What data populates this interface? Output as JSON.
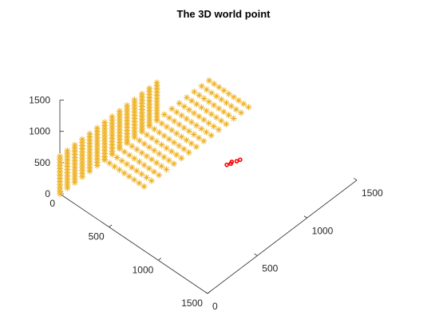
{
  "chart_data": {
    "type": "scatter",
    "title": "The 3D world point",
    "xlabel": "",
    "ylabel": "",
    "zlabel": "",
    "x_axis": {
      "ticks": [
        0,
        500,
        1000,
        1500
      ],
      "lim": [
        0,
        1500
      ]
    },
    "y_axis": {
      "ticks": [
        0,
        500,
        1000,
        1500
      ],
      "lim": [
        0,
        1500
      ]
    },
    "z_axis": {
      "ticks": [
        0,
        500,
        1000,
        1500
      ],
      "lim": [
        0,
        1500
      ]
    },
    "grid": false,
    "series": [
      {
        "marker": "*",
        "color": "#EDB120",
        "shape": "L-shaped checkerboard grid of world points",
        "floor_plane": {
          "x_range": [
            0,
            400
          ],
          "y_range": [
            450,
            1500
          ],
          "z": 0,
          "x_step": 50,
          "y_step": 75
        },
        "wall_plane": {
          "x_range": [
            0,
            400
          ],
          "y_range": [
            0,
            1000
          ],
          "z_range": [
            0,
            600
          ],
          "y_step": 75,
          "z_step": 50
        }
      },
      {
        "marker": "o",
        "color": "#FF0000",
        "shape": "camera points",
        "points": [
          [
            1170,
            520,
            1080
          ],
          [
            1180,
            560,
            1090
          ],
          [
            1200,
            590,
            1085
          ],
          [
            1215,
            610,
            1100
          ],
          [
            1190,
            540,
            1095
          ]
        ]
      }
    ]
  }
}
